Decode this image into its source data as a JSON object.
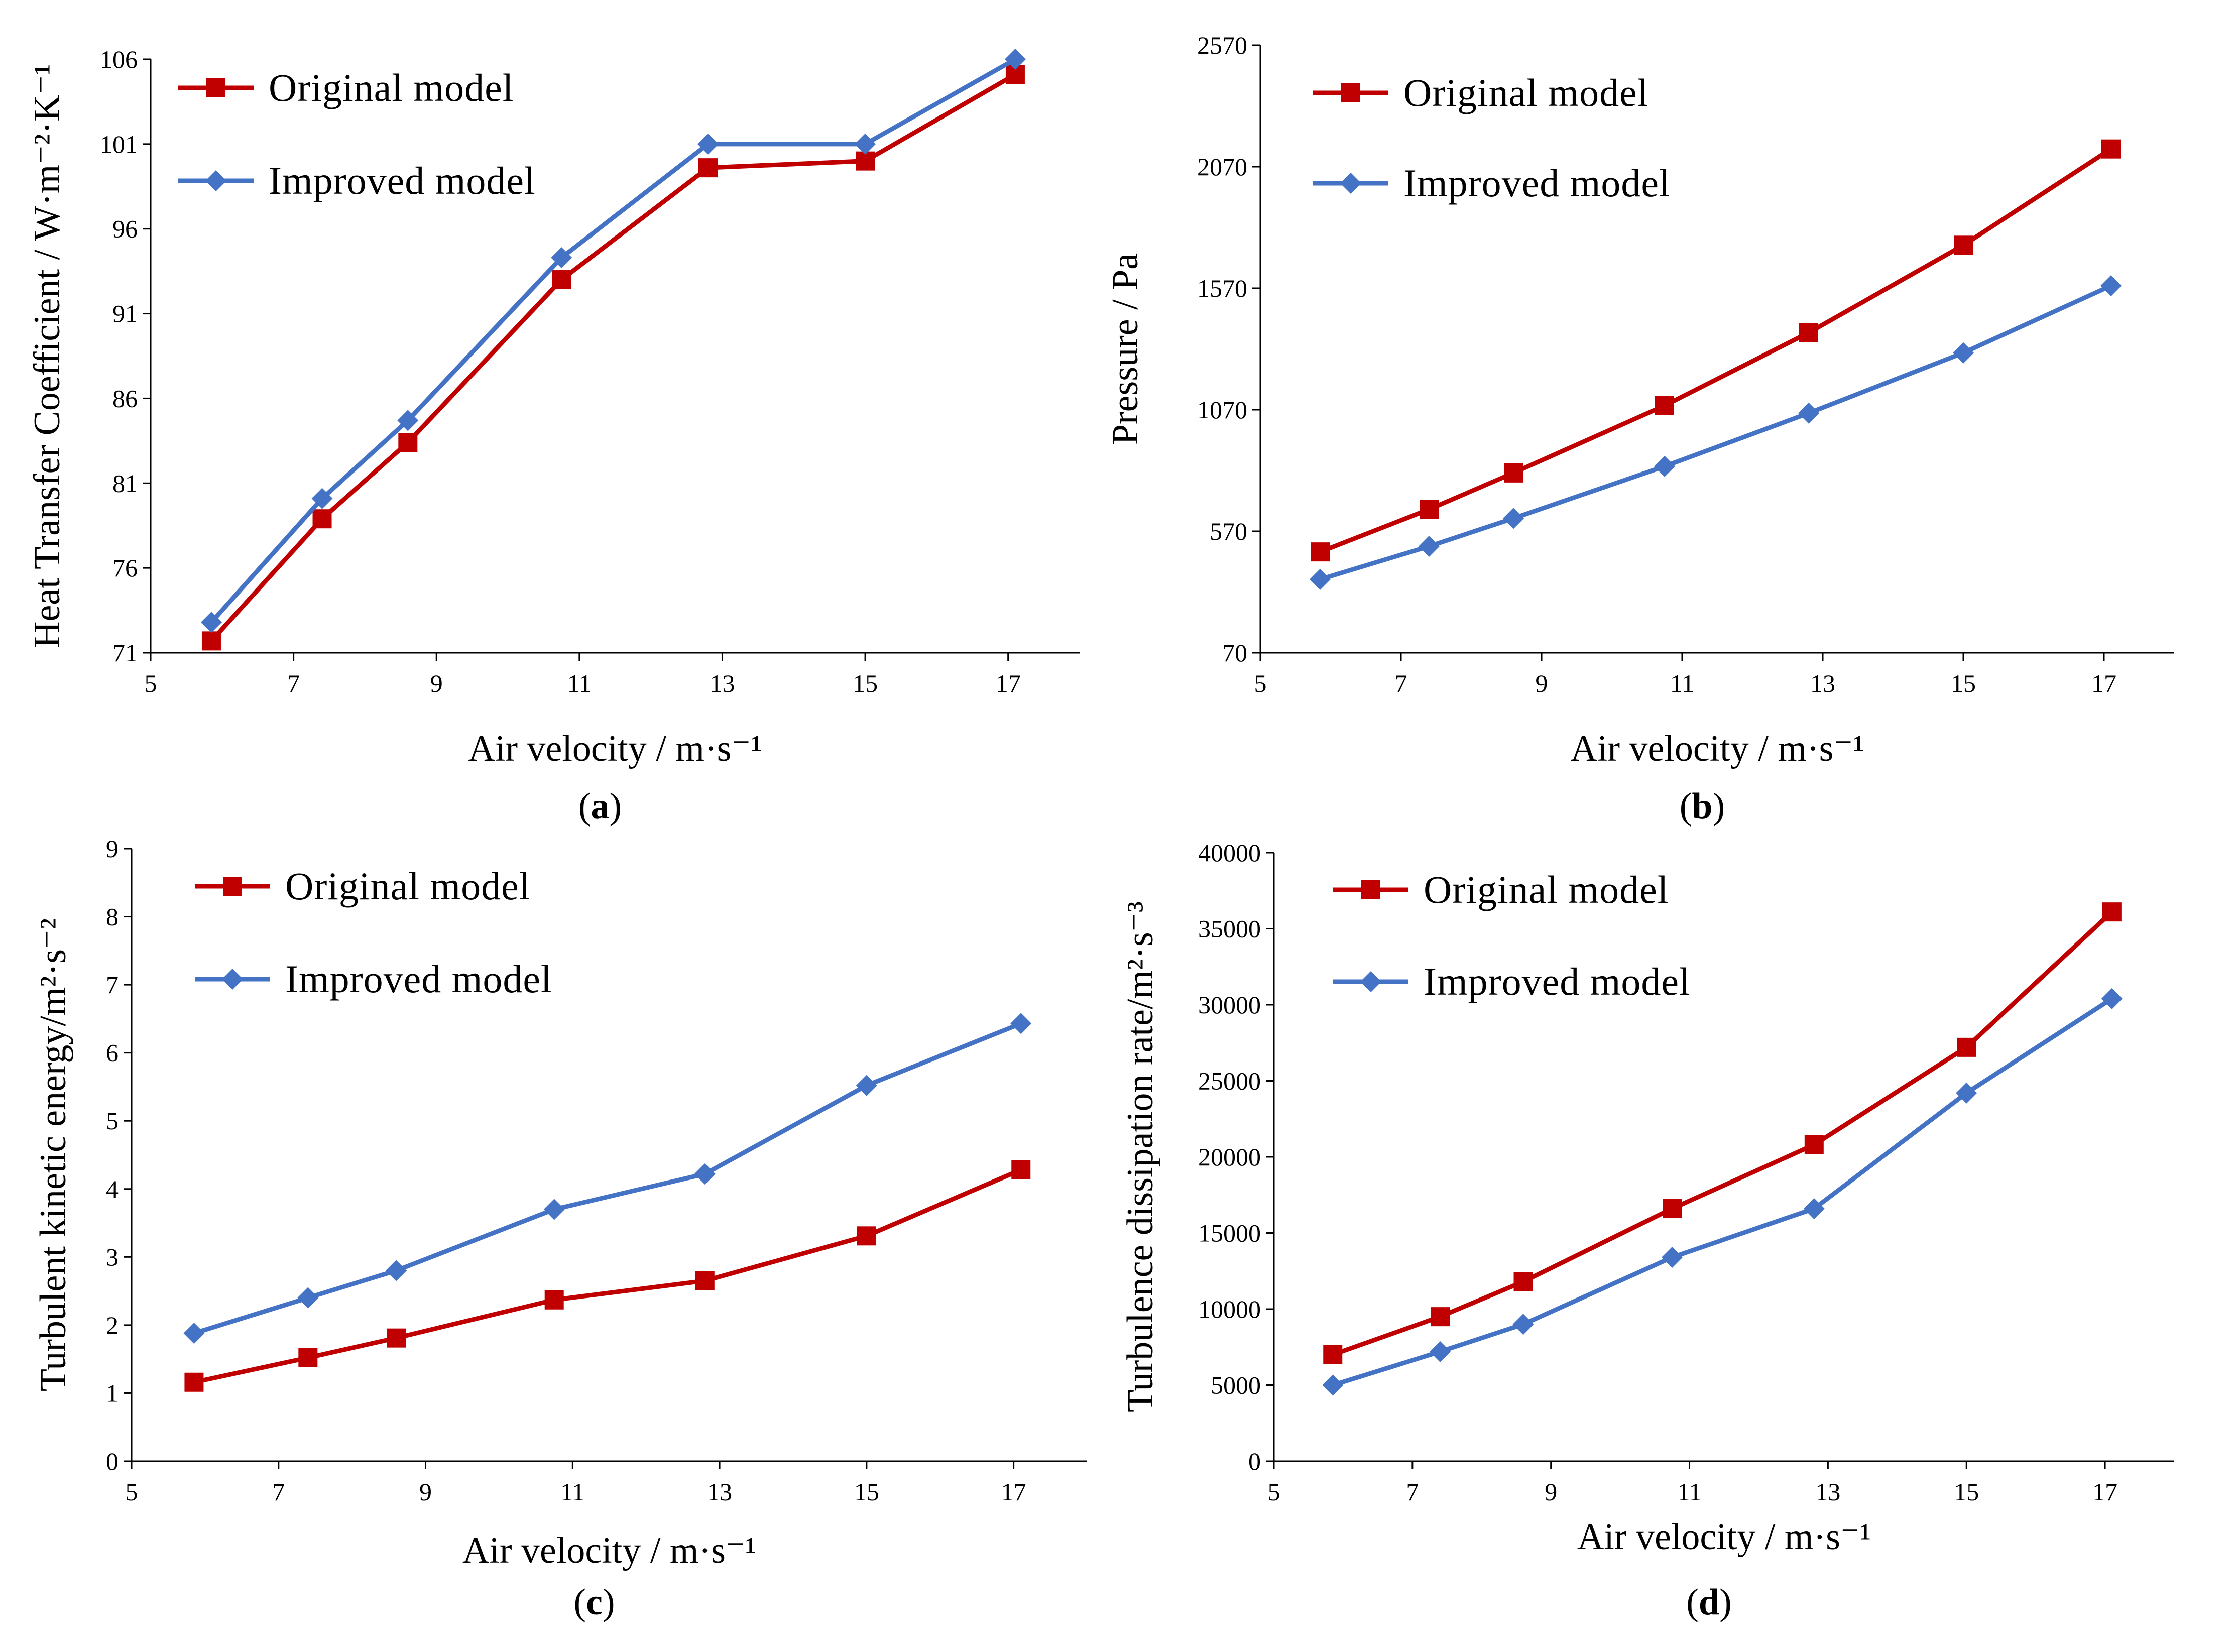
{
  "colors": {
    "original": "#C00000",
    "improved": "#4472C4",
    "axis": "#000000"
  },
  "legend": {
    "original": "Original model",
    "improved": "Improved model"
  },
  "chart_data": [
    {
      "id": "a",
      "panel_label": "a",
      "type": "line",
      "xlabel": "Air velocity / m·s⁻¹",
      "ylabel": "Heat Transfer Coefficient / W·m⁻²·K⁻¹",
      "xlim": [
        5,
        18
      ],
      "xticks": [
        5,
        7,
        9,
        11,
        13,
        15,
        17
      ],
      "ylim": [
        71,
        106
      ],
      "yticks": [
        71,
        76,
        81,
        86,
        91,
        96,
        101,
        106
      ],
      "x": [
        5.85,
        7.4,
        8.6,
        10.75,
        12.8,
        15.0,
        17.1
      ],
      "series": [
        {
          "name": "Original model",
          "key": "original",
          "marker": "square",
          "values": [
            71.7,
            78.9,
            83.4,
            93.0,
            99.6,
            100.0,
            105.1
          ]
        },
        {
          "name": "Improved model",
          "key": "improved",
          "marker": "diamond",
          "values": [
            72.8,
            80.1,
            84.7,
            94.3,
            101.0,
            101.0,
            106.0
          ]
        }
      ],
      "legend_position": "top-left"
    },
    {
      "id": "b",
      "panel_label": "b",
      "type": "line",
      "xlabel": "Air velocity / m·s⁻¹",
      "ylabel": "Pressure / Pa",
      "xlim": [
        5,
        18
      ],
      "xticks": [
        5,
        7,
        9,
        11,
        13,
        15,
        17
      ],
      "ylim": [
        70,
        2570
      ],
      "yticks": [
        70,
        570,
        1070,
        1570,
        2070,
        2570
      ],
      "x": [
        5.85,
        7.4,
        8.6,
        10.75,
        12.8,
        15.0,
        17.1
      ],
      "series": [
        {
          "name": "Original model",
          "key": "original",
          "marker": "square",
          "values": [
            485,
            660,
            810,
            1087,
            1387,
            1747,
            2143
          ]
        },
        {
          "name": "Improved model",
          "key": "improved",
          "marker": "diamond",
          "values": [
            372,
            508,
            623,
            837,
            1056,
            1304,
            1580
          ]
        }
      ],
      "legend_position": "top-left"
    },
    {
      "id": "c",
      "panel_label": "c",
      "type": "line",
      "xlabel": "Air velocity / m·s⁻¹",
      "ylabel": "Turbulent kinetic energy/m²·s⁻²",
      "xlim": [
        5,
        18
      ],
      "xticks": [
        5,
        7,
        9,
        11,
        13,
        15,
        17
      ],
      "ylim": [
        0,
        9
      ],
      "yticks": [
        0,
        1,
        2,
        3,
        4,
        5,
        6,
        7,
        8,
        9
      ],
      "x": [
        5.85,
        7.4,
        8.6,
        10.75,
        12.8,
        15.0,
        17.1
      ],
      "series": [
        {
          "name": "Original model",
          "key": "original",
          "marker": "square",
          "values": [
            1.16,
            1.52,
            1.81,
            2.37,
            2.65,
            3.31,
            4.28
          ]
        },
        {
          "name": "Improved model",
          "key": "improved",
          "marker": "diamond",
          "values": [
            1.88,
            2.4,
            2.8,
            3.7,
            4.22,
            5.52,
            6.43
          ]
        }
      ],
      "legend_position": "top-left"
    },
    {
      "id": "d",
      "panel_label": "d",
      "type": "line",
      "xlabel": "Air velocity / m·s⁻¹",
      "ylabel": "Turbulence dissipation rate/m²·s⁻³",
      "xlim": [
        5,
        18
      ],
      "xticks": [
        5,
        7,
        9,
        11,
        13,
        15,
        17
      ],
      "ylim": [
        0,
        40000
      ],
      "yticks": [
        0,
        5000,
        10000,
        15000,
        20000,
        25000,
        30000,
        35000,
        40000
      ],
      "x": [
        5.85,
        7.4,
        8.6,
        10.75,
        12.8,
        15.0,
        17.1
      ],
      "series": [
        {
          "name": "Original model",
          "key": "original",
          "marker": "square",
          "values": [
            7000,
            9500,
            11800,
            16600,
            20800,
            27200,
            36100
          ]
        },
        {
          "name": "Improved model",
          "key": "improved",
          "marker": "diamond",
          "values": [
            5000,
            7200,
            9000,
            13400,
            16600,
            24200,
            30400
          ]
        }
      ],
      "legend_position": "top-left"
    }
  ]
}
